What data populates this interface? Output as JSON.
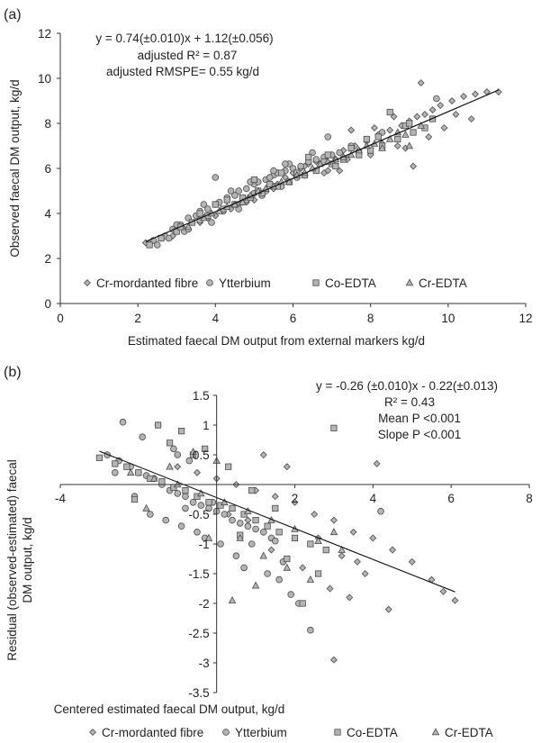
{
  "chart_data": [
    {
      "panel": "(a)",
      "type": "scatter",
      "title": "",
      "xlabel": "Estimated faecal DM output from external markers kg/d",
      "ylabel": "Observed faecal DM output, kg/d",
      "xlim": [
        0,
        12
      ],
      "ylim": [
        0,
        12
      ],
      "xticks": [
        0,
        2,
        4,
        6,
        8,
        10,
        12
      ],
      "yticks": [
        0,
        2,
        4,
        6,
        8,
        10,
        12
      ],
      "grid": false,
      "legend_position": "bottom",
      "annotation": [
        "y = 0.74(±0.010)x + 1.12(±0.056)",
        "adjusted R² = 0.87",
        "adjusted RMSPE= 0.55 kg/d"
      ],
      "fit_line": {
        "slope": 0.74,
        "intercept": 1.12,
        "x_range": [
          2.2,
          11.3
        ]
      },
      "series": [
        {
          "name": "Cr-mordanted fibre",
          "marker": "diamond",
          "x": [
            5.8,
            6.2,
            6.6,
            7.0,
            7.3,
            7.6,
            7.9,
            8.2,
            8.5,
            8.8,
            9.0,
            9.2,
            9.4,
            9.6,
            9.8,
            10.1,
            10.4,
            10.7,
            11.0,
            11.3,
            8.6,
            7.7,
            6.9,
            9.1,
            8.3,
            7.1,
            6.4,
            5.5,
            8.9,
            9.3,
            9.9,
            10.2,
            7.5,
            8.0,
            6.0,
            5.2,
            4.8,
            4.4,
            4.0,
            3.6,
            3.2,
            2.9,
            2.6,
            2.3,
            2.2,
            3.0,
            3.8,
            4.6,
            5.0,
            5.6,
            6.8,
            7.4,
            8.1,
            8.7,
            9.5,
            10.6,
            7.2,
            6.3
          ],
          "y": [
            5.6,
            6.0,
            6.3,
            6.6,
            6.8,
            7.0,
            7.2,
            7.5,
            7.7,
            7.9,
            8.1,
            8.3,
            8.4,
            8.6,
            8.8,
            9.0,
            9.2,
            9.3,
            9.4,
            9.4,
            8.3,
            6.8,
            5.9,
            6.1,
            7.1,
            6.4,
            6.2,
            5.1,
            6.9,
            9.8,
            7.8,
            8.4,
            7.7,
            6.6,
            5.8,
            4.9,
            4.5,
            4.2,
            3.9,
            3.6,
            3.3,
            3.0,
            2.9,
            2.7,
            2.7,
            3.2,
            3.8,
            4.4,
            4.6,
            5.3,
            5.8,
            6.4,
            7.8,
            7.0,
            7.4,
            8.2,
            5.9,
            6.1
          ]
        },
        {
          "name": "Ytterbium",
          "marker": "circle",
          "x": [
            2.4,
            2.7,
            2.9,
            3.1,
            3.3,
            3.5,
            3.6,
            3.8,
            4.0,
            4.1,
            4.3,
            4.5,
            4.6,
            4.8,
            5.0,
            5.1,
            5.3,
            5.5,
            5.6,
            5.8,
            6.0,
            6.2,
            6.4,
            6.6,
            6.8,
            7.0,
            7.2,
            3.2,
            3.4,
            3.9,
            4.2,
            4.4,
            4.7,
            4.9,
            5.2,
            5.4,
            5.7,
            5.9,
            6.1,
            6.5,
            2.8,
            3.0,
            3.7,
            4.6,
            5.0,
            5.5,
            6.3,
            7.5,
            8.3,
            9.7,
            4.0,
            3.3,
            5.8,
            6.9,
            2.5,
            3.6,
            4.8,
            5.3
          ],
          "y": [
            2.8,
            3.0,
            3.3,
            3.5,
            3.8,
            3.9,
            4.1,
            4.2,
            4.4,
            4.5,
            4.7,
            4.8,
            5.0,
            5.1,
            5.3,
            5.4,
            5.5,
            5.7,
            5.8,
            5.9,
            6.0,
            6.1,
            6.3,
            6.4,
            6.5,
            6.6,
            6.7,
            3.2,
            3.6,
            3.6,
            4.1,
            5.0,
            4.5,
            5.4,
            4.8,
            5.6,
            5.2,
            6.2,
            5.6,
            6.7,
            2.9,
            3.5,
            4.4,
            4.2,
            4.9,
            5.9,
            5.7,
            7.0,
            7.6,
            9.1,
            5.6,
            3.3,
            6.2,
            7.4,
            2.6,
            3.7,
            4.6,
            5.0
          ]
        },
        {
          "name": "Co-EDTA",
          "marker": "square",
          "x": [
            2.3,
            2.6,
            3.0,
            3.4,
            3.8,
            4.2,
            4.5,
            4.9,
            5.2,
            5.6,
            5.9,
            6.3,
            6.6,
            7.0,
            7.3,
            7.7,
            8.0,
            8.3,
            8.7,
            9.1,
            9.4,
            3.6,
            4.0,
            4.7,
            5.4,
            6.1,
            6.8,
            7.5,
            8.2,
            8.9,
            9.6,
            5.0,
            5.7,
            6.4,
            7.1,
            3.1,
            4.3,
            5.1,
            6.9,
            7.9,
            8.5,
            9.0
          ],
          "y": [
            2.6,
            2.9,
            3.2,
            3.6,
            3.9,
            4.2,
            4.4,
            4.7,
            4.9,
            5.2,
            5.4,
            5.7,
            5.9,
            6.2,
            6.4,
            6.6,
            6.8,
            7.0,
            7.3,
            7.6,
            7.8,
            4.0,
            4.4,
            4.7,
            5.3,
            5.8,
            6.3,
            6.9,
            7.4,
            7.9,
            8.2,
            5.5,
            5.8,
            6.5,
            6.1,
            3.4,
            4.6,
            5.0,
            6.6,
            7.3,
            8.5,
            8.0
          ]
        },
        {
          "name": "Cr-EDTA",
          "marker": "triangle",
          "x": [
            3.3,
            3.7,
            4.1,
            4.5,
            4.9,
            5.3,
            5.7,
            6.1,
            6.5,
            6.9,
            7.3,
            7.7,
            8.1,
            8.5,
            8.9,
            9.3,
            4.3,
            5.1,
            5.9,
            6.7,
            7.5,
            8.3,
            9.0,
            3.9,
            4.7,
            5.5,
            6.3,
            7.1,
            7.9,
            8.7
          ],
          "y": [
            3.4,
            3.8,
            4.1,
            4.4,
            4.8,
            5.1,
            5.4,
            5.7,
            6.0,
            6.3,
            6.5,
            6.8,
            7.1,
            7.3,
            7.5,
            7.9,
            4.3,
            5.0,
            5.4,
            6.2,
            6.6,
            6.9,
            7.0,
            4.0,
            4.5,
            5.2,
            5.8,
            6.4,
            7.0,
            7.6
          ]
        }
      ]
    },
    {
      "panel": "(b)",
      "type": "scatter",
      "title": "",
      "xlabel": "Centered estimated faecal DM output, kg/d",
      "ylabel": "Residual (observed-estimated) faecal DM output, kg/d",
      "xlim": [
        -4,
        8
      ],
      "ylim": [
        -3.5,
        1.5
      ],
      "xticks": [
        -4,
        2,
        4,
        6,
        8
      ],
      "yticks": [
        1.5,
        1,
        0.5,
        -0.5,
        -1,
        -1.5,
        -2,
        -2.5,
        -3,
        -3.5
      ],
      "grid": false,
      "legend_position": "bottom",
      "annotation": [
        "y = -0.26 (±0.010)x - 0.22(±0.013)",
        "R² = 0.43",
        "Mean P <0.001",
        "Slope P <0.001"
      ],
      "fit_line": {
        "slope": -0.26,
        "intercept": -0.22,
        "x_range": [
          -3.0,
          6.1
        ]
      },
      "series": [
        {
          "name": "Cr-mordanted fibre",
          "marker": "diamond",
          "x": [
            -1.0,
            -0.5,
            0.0,
            0.5,
            1.0,
            1.5,
            2.0,
            2.5,
            3.0,
            3.5,
            4.0,
            4.5,
            5.0,
            5.5,
            5.8,
            6.1,
            1.2,
            1.8,
            2.6,
            3.2,
            3.8,
            4.1,
            0.8,
            1.4,
            2.2,
            2.9,
            3.4,
            4.4,
            3.0,
            3.6,
            0.3,
            -0.2
          ],
          "y": [
            0.3,
            0.2,
            0.1,
            0.0,
            -0.1,
            -0.2,
            -0.3,
            -0.5,
            -0.6,
            -0.8,
            -0.9,
            -1.1,
            -1.3,
            -1.6,
            -1.8,
            -1.95,
            0.5,
            0.3,
            -0.9,
            -1.2,
            -1.5,
            0.35,
            -0.6,
            -1.1,
            -1.4,
            -1.75,
            -1.9,
            -2.1,
            -2.95,
            -1.3,
            -0.5,
            -0.3
          ]
        },
        {
          "name": "Ytterbium",
          "marker": "circle",
          "x": [
            -2.8,
            -2.5,
            -2.2,
            -2.0,
            -1.8,
            -1.6,
            -1.4,
            -1.2,
            -1.0,
            -0.8,
            -0.6,
            -0.4,
            -0.2,
            0.0,
            0.2,
            0.4,
            0.6,
            0.8,
            1.0,
            1.2,
            1.4,
            -2.4,
            -1.9,
            -1.5,
            -1.1,
            -0.7,
            -0.3,
            0.1,
            0.5,
            0.9,
            1.3,
            1.7,
            -1.7,
            -1.3,
            -0.9,
            -0.5,
            1.6,
            2.1,
            2.4,
            1.9,
            4.2,
            -2.1,
            -1.0,
            -0.1,
            0.7,
            1.5,
            -2.6,
            -0.8
          ],
          "y": [
            0.5,
            0.4,
            0.3,
            0.2,
            0.15,
            0.1,
            0.0,
            -0.1,
            -0.15,
            -0.2,
            -0.3,
            -0.35,
            -0.4,
            -0.45,
            -0.5,
            -0.6,
            -0.65,
            -0.7,
            -0.75,
            -0.8,
            -0.9,
            1.05,
            0.8,
            1.0,
            0.6,
            0.4,
            -0.9,
            -1.0,
            -1.2,
            -1.0,
            -1.5,
            -1.3,
            -0.5,
            -0.6,
            -0.7,
            -0.8,
            -1.6,
            -2.0,
            -2.45,
            -1.85,
            -0.45,
            -0.2,
            0.5,
            -0.3,
            -1.4,
            -0.95,
            0.2,
            -0.4
          ]
        },
        {
          "name": "Co-EDTA",
          "marker": "square",
          "x": [
            -3.0,
            -2.6,
            -2.3,
            -2.0,
            -1.7,
            -1.4,
            -1.1,
            -0.8,
            -0.5,
            -0.2,
            0.1,
            0.4,
            0.7,
            1.0,
            1.3,
            1.6,
            2.0,
            2.4,
            2.8,
            -1.5,
            -0.9,
            -0.3,
            0.3,
            0.9,
            1.5,
            2.2,
            2.6,
            3.0,
            -2.1,
            -1.2,
            -0.6,
            0.6,
            1.8
          ],
          "y": [
            0.45,
            0.35,
            0.3,
            0.2,
            0.1,
            0.05,
            -0.05,
            -0.1,
            -0.2,
            -0.3,
            -0.35,
            -0.4,
            -0.5,
            -0.6,
            -0.7,
            -0.8,
            -0.9,
            -1.0,
            -1.1,
            1.0,
            0.9,
            0.6,
            0.3,
            -0.1,
            -0.4,
            -2.0,
            -1.5,
            0.95,
            -0.25,
            0.7,
            0.5,
            -0.85,
            -1.25
          ]
        },
        {
          "name": "Cr-EDTA",
          "marker": "triangle",
          "x": [
            -2.2,
            -1.6,
            -1.0,
            -0.4,
            0.2,
            0.8,
            1.4,
            2.0,
            2.6,
            3.2,
            -1.8,
            -1.2,
            -0.6,
            0.0,
            0.6,
            1.2,
            1.8,
            2.4,
            3.0,
            -0.2,
            0.4,
            1.0
          ],
          "y": [
            0.2,
            0.1,
            0.0,
            -0.15,
            -0.3,
            -0.45,
            -0.6,
            -0.75,
            -0.95,
            -1.1,
            -0.4,
            0.3,
            0.55,
            0.4,
            -0.9,
            -1.2,
            -1.4,
            -1.6,
            -0.8,
            -0.9,
            -1.95,
            -1.7
          ]
        }
      ]
    }
  ],
  "figure": {
    "panel_a_label": "(a)",
    "panel_b_label": "(b)",
    "marker_fill": "#b4b4b4",
    "marker_stroke": "#4a4a4a",
    "line_color": "#111111"
  }
}
